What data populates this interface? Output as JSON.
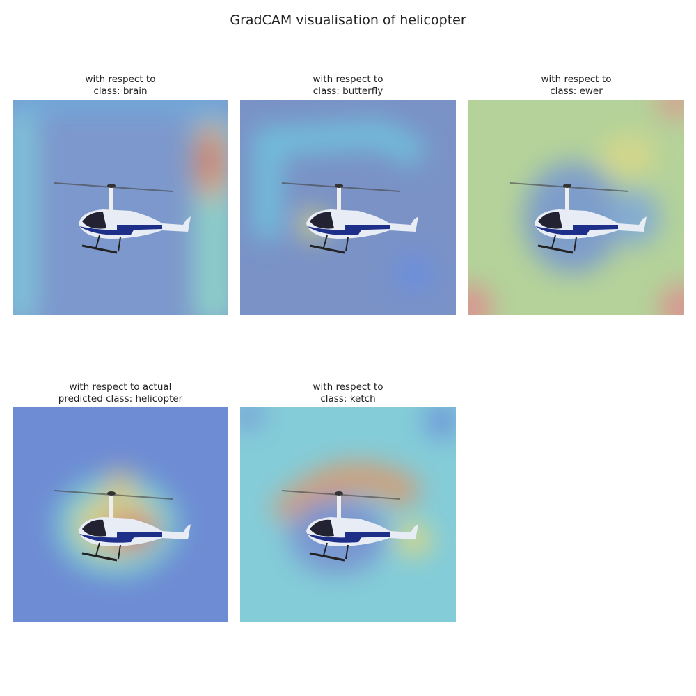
{
  "title": "GradCAM visualisation of helicopter",
  "panels": [
    {
      "title": [
        "with respect to",
        "class: brain"
      ]
    },
    {
      "title": [
        "with respect to",
        "class: butterfly"
      ]
    },
    {
      "title": [
        "with respect to",
        "class: ewer"
      ]
    },
    {
      "title": [
        "with respect to actual",
        "predicted class: helicopter"
      ]
    },
    {
      "title": [
        "with respect to",
        "class: ketch"
      ]
    }
  ]
}
